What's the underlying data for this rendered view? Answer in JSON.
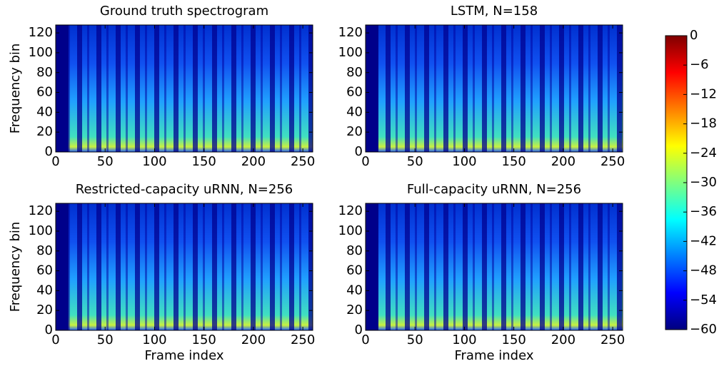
{
  "chart_data": [
    {
      "type": "heatmap",
      "title": "Ground truth spectrogram",
      "y_label": "Frequency bin",
      "xlim": [
        0,
        260
      ],
      "xticks": [
        0,
        50,
        100,
        150,
        200,
        250
      ],
      "ylim": [
        0,
        128
      ],
      "yticks": [
        0,
        20,
        40,
        60,
        80,
        100,
        120
      ],
      "colormap": "jet"
    },
    {
      "type": "heatmap",
      "title": "LSTM, N=158",
      "xlim": [
        0,
        260
      ],
      "xticks": [
        0,
        50,
        100,
        150,
        200,
        250
      ],
      "ylim": [
        0,
        128
      ],
      "yticks": [
        0,
        20,
        40,
        60,
        80,
        100,
        120
      ],
      "colormap": "jet"
    },
    {
      "type": "heatmap",
      "title": "Restricted-capacity uRNN, N=256",
      "y_label": "Frequency bin",
      "x_label": "Frame index",
      "xlim": [
        0,
        260
      ],
      "xticks": [
        0,
        50,
        100,
        150,
        200,
        250
      ],
      "ylim": [
        0,
        128
      ],
      "yticks": [
        0,
        20,
        40,
        60,
        80,
        100,
        120
      ],
      "colormap": "jet"
    },
    {
      "type": "heatmap",
      "title": "Full-capacity uRNN, N=256",
      "x_label": "Frame index",
      "xlim": [
        0,
        260
      ],
      "xticks": [
        0,
        50,
        100,
        150,
        200,
        250
      ],
      "ylim": [
        0,
        128
      ],
      "yticks": [
        0,
        20,
        40,
        60,
        80,
        100,
        120
      ],
      "colormap": "jet"
    },
    {
      "type": "colorbar",
      "colormap": "jet",
      "ylim": [
        -60,
        0
      ],
      "yticks": [
        {
          "value": -60,
          "label": "−60"
        },
        {
          "value": -54,
          "label": "−54"
        },
        {
          "value": -48,
          "label": "−48"
        },
        {
          "value": -42,
          "label": "−42"
        },
        {
          "value": -36,
          "label": "−36"
        },
        {
          "value": -30,
          "label": "−30"
        },
        {
          "value": -24,
          "label": "−24"
        },
        {
          "value": -18,
          "label": "−18"
        },
        {
          "value": -12,
          "label": "−12"
        },
        {
          "value": -6,
          "label": "−6"
        },
        0
      ]
    }
  ]
}
